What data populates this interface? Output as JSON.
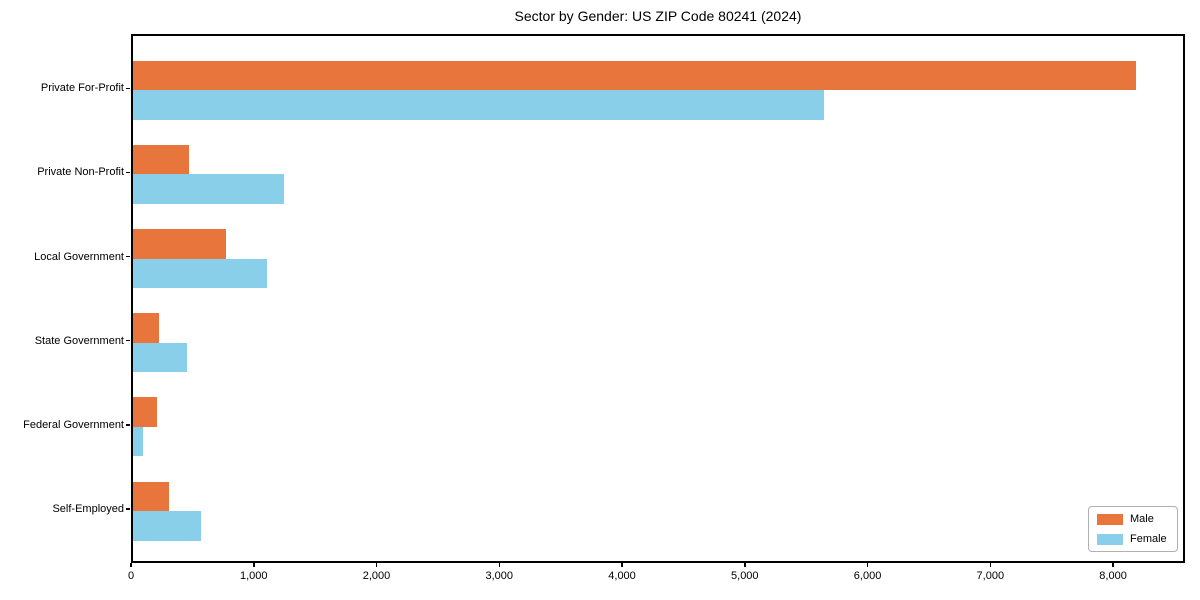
{
  "chart_data": {
    "type": "bar",
    "orientation": "horizontal",
    "title": "Sector by Gender: US ZIP Code 80241 (2024)",
    "categories": [
      "Private For-Profit",
      "Private Non-Profit",
      "Local Government",
      "State Government",
      "Federal Government",
      "Self-Employed"
    ],
    "series": [
      {
        "name": "Male",
        "color": "#e8763c",
        "values": [
          8170,
          460,
          757,
          208,
          198,
          290
        ]
      },
      {
        "name": "Female",
        "color": "#89cfea",
        "values": [
          5630,
          1226,
          1091,
          442,
          84,
          556
        ]
      }
    ],
    "xlabel": "",
    "ylabel": "",
    "xlim": [
      0,
      8586
    ],
    "xticks": [
      0,
      1000,
      2000,
      3000,
      4000,
      5000,
      6000,
      7000,
      8000
    ],
    "xtick_labels": [
      "0",
      "1,000",
      "2,000",
      "3,000",
      "4,000",
      "5,000",
      "6,000",
      "7,000",
      "8,000"
    ],
    "grid": false,
    "legend": {
      "position": "lower right",
      "entries": [
        "Male",
        "Female"
      ]
    }
  },
  "style": {
    "axis_color": "#000000",
    "legend_border_color": "#b0b0b0",
    "background_color": "#ffffff"
  }
}
